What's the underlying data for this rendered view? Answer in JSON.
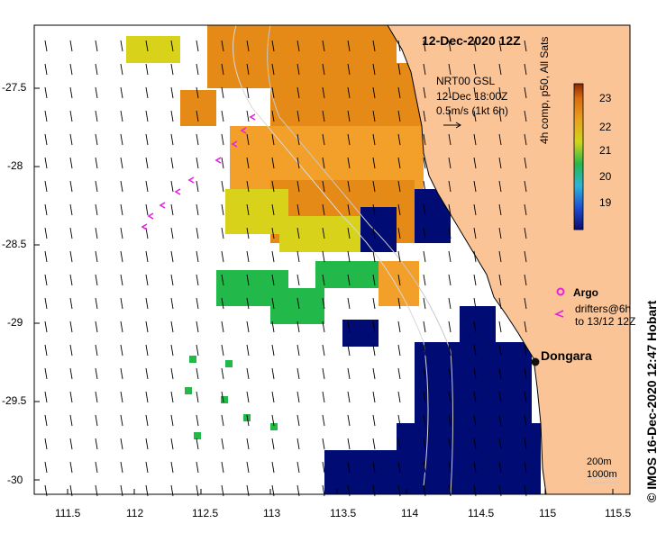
{
  "map": {
    "date_title": "12-Dec-2020 12Z",
    "model_lines": [
      "NRT00 GSL",
      "12-Dec 18:00Z",
      "0.5m/s (1kt 6h)"
    ],
    "scale_title": "4h comp, p50, All Sats",
    "credit": "© IMOS 16-Dec-2020 12:47 Hobart",
    "argo_label": "Argo",
    "drifter_lines": [
      "drifters@6h",
      "to 13/12 12Z"
    ],
    "town": "Dongara",
    "depth_labels": [
      "200m",
      "1000m"
    ],
    "lat_ticks": [
      "-27.5",
      "-28",
      "-28.5",
      "-29",
      "-29.5",
      "-30"
    ],
    "lon_ticks": [
      "111.5",
      "112",
      "112.5",
      "113",
      "113.5",
      "114",
      "114.5",
      "115",
      "115.5"
    ],
    "colorbar_ticks": [
      "23",
      "22",
      "21",
      "20",
      "19"
    ],
    "colors": {
      "land": "#fbc497",
      "cloud_blue": "#000b73",
      "warm": "#e58a17",
      "warm_light": "#f2a02a",
      "cool_green": "#22b84a",
      "cool_cyan": "#2fa7cf",
      "yellow": "#d9d21b",
      "argo": "#e81fe0"
    }
  },
  "chart_data": {
    "type": "heatmap",
    "title": "12-Dec-2020 12Z",
    "xlabel": "",
    "ylabel": "",
    "x_ticks": [
      111.5,
      112,
      112.5,
      113,
      113.5,
      114,
      114.5,
      115,
      115.5
    ],
    "y_ticks": [
      -27.5,
      -28,
      -28.5,
      -29,
      -29.5,
      -30
    ],
    "xlim": [
      111.35,
      115.65
    ],
    "ylim": [
      -30.12,
      -27.1
    ],
    "colorbar": {
      "label": "4h comp, p50, All Sats",
      "range": [
        18.5,
        23.5
      ],
      "ticks": [
        19,
        20,
        21,
        22,
        23
      ]
    },
    "places": [
      {
        "name": "Dongara",
        "lon": 114.93,
        "lat": -29.25
      }
    ]
  }
}
